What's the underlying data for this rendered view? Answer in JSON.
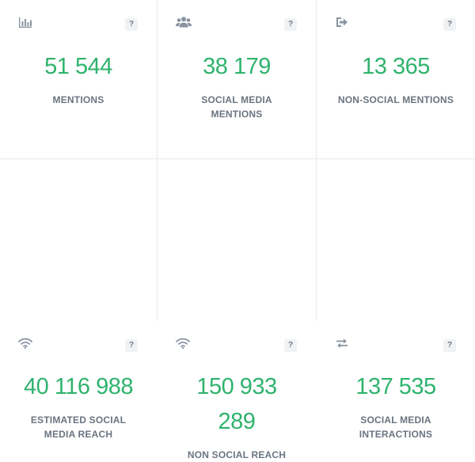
{
  "cards": [
    {
      "icon": "bar-chart-icon",
      "value": "51 544",
      "label": "MENTIONS",
      "help": "?"
    },
    {
      "icon": "users-icon",
      "value": "38 179",
      "label_line1": "SOCIAL MEDIA",
      "label_line2": "MENTIONS",
      "help": "?"
    },
    {
      "icon": "sign-out-icon",
      "value": "13 365",
      "label": "NON-SOCIAL MENTIONS",
      "help": "?"
    },
    {
      "icon": "wifi-icon",
      "value": "40 116 988",
      "label_line1": "ESTIMATED SOCIAL",
      "label_line2": "MEDIA REACH",
      "help": "?"
    },
    {
      "icon": "wifi-icon",
      "value_line1": "150 933",
      "value_line2": "289",
      "label": "NON SOCIAL REACH",
      "help": "?"
    },
    {
      "icon": "exchange-icon",
      "value": "137 535",
      "label_line1": "SOCIAL MEDIA",
      "label_line2": "INTERACTIONS",
      "help": "?"
    }
  ]
}
